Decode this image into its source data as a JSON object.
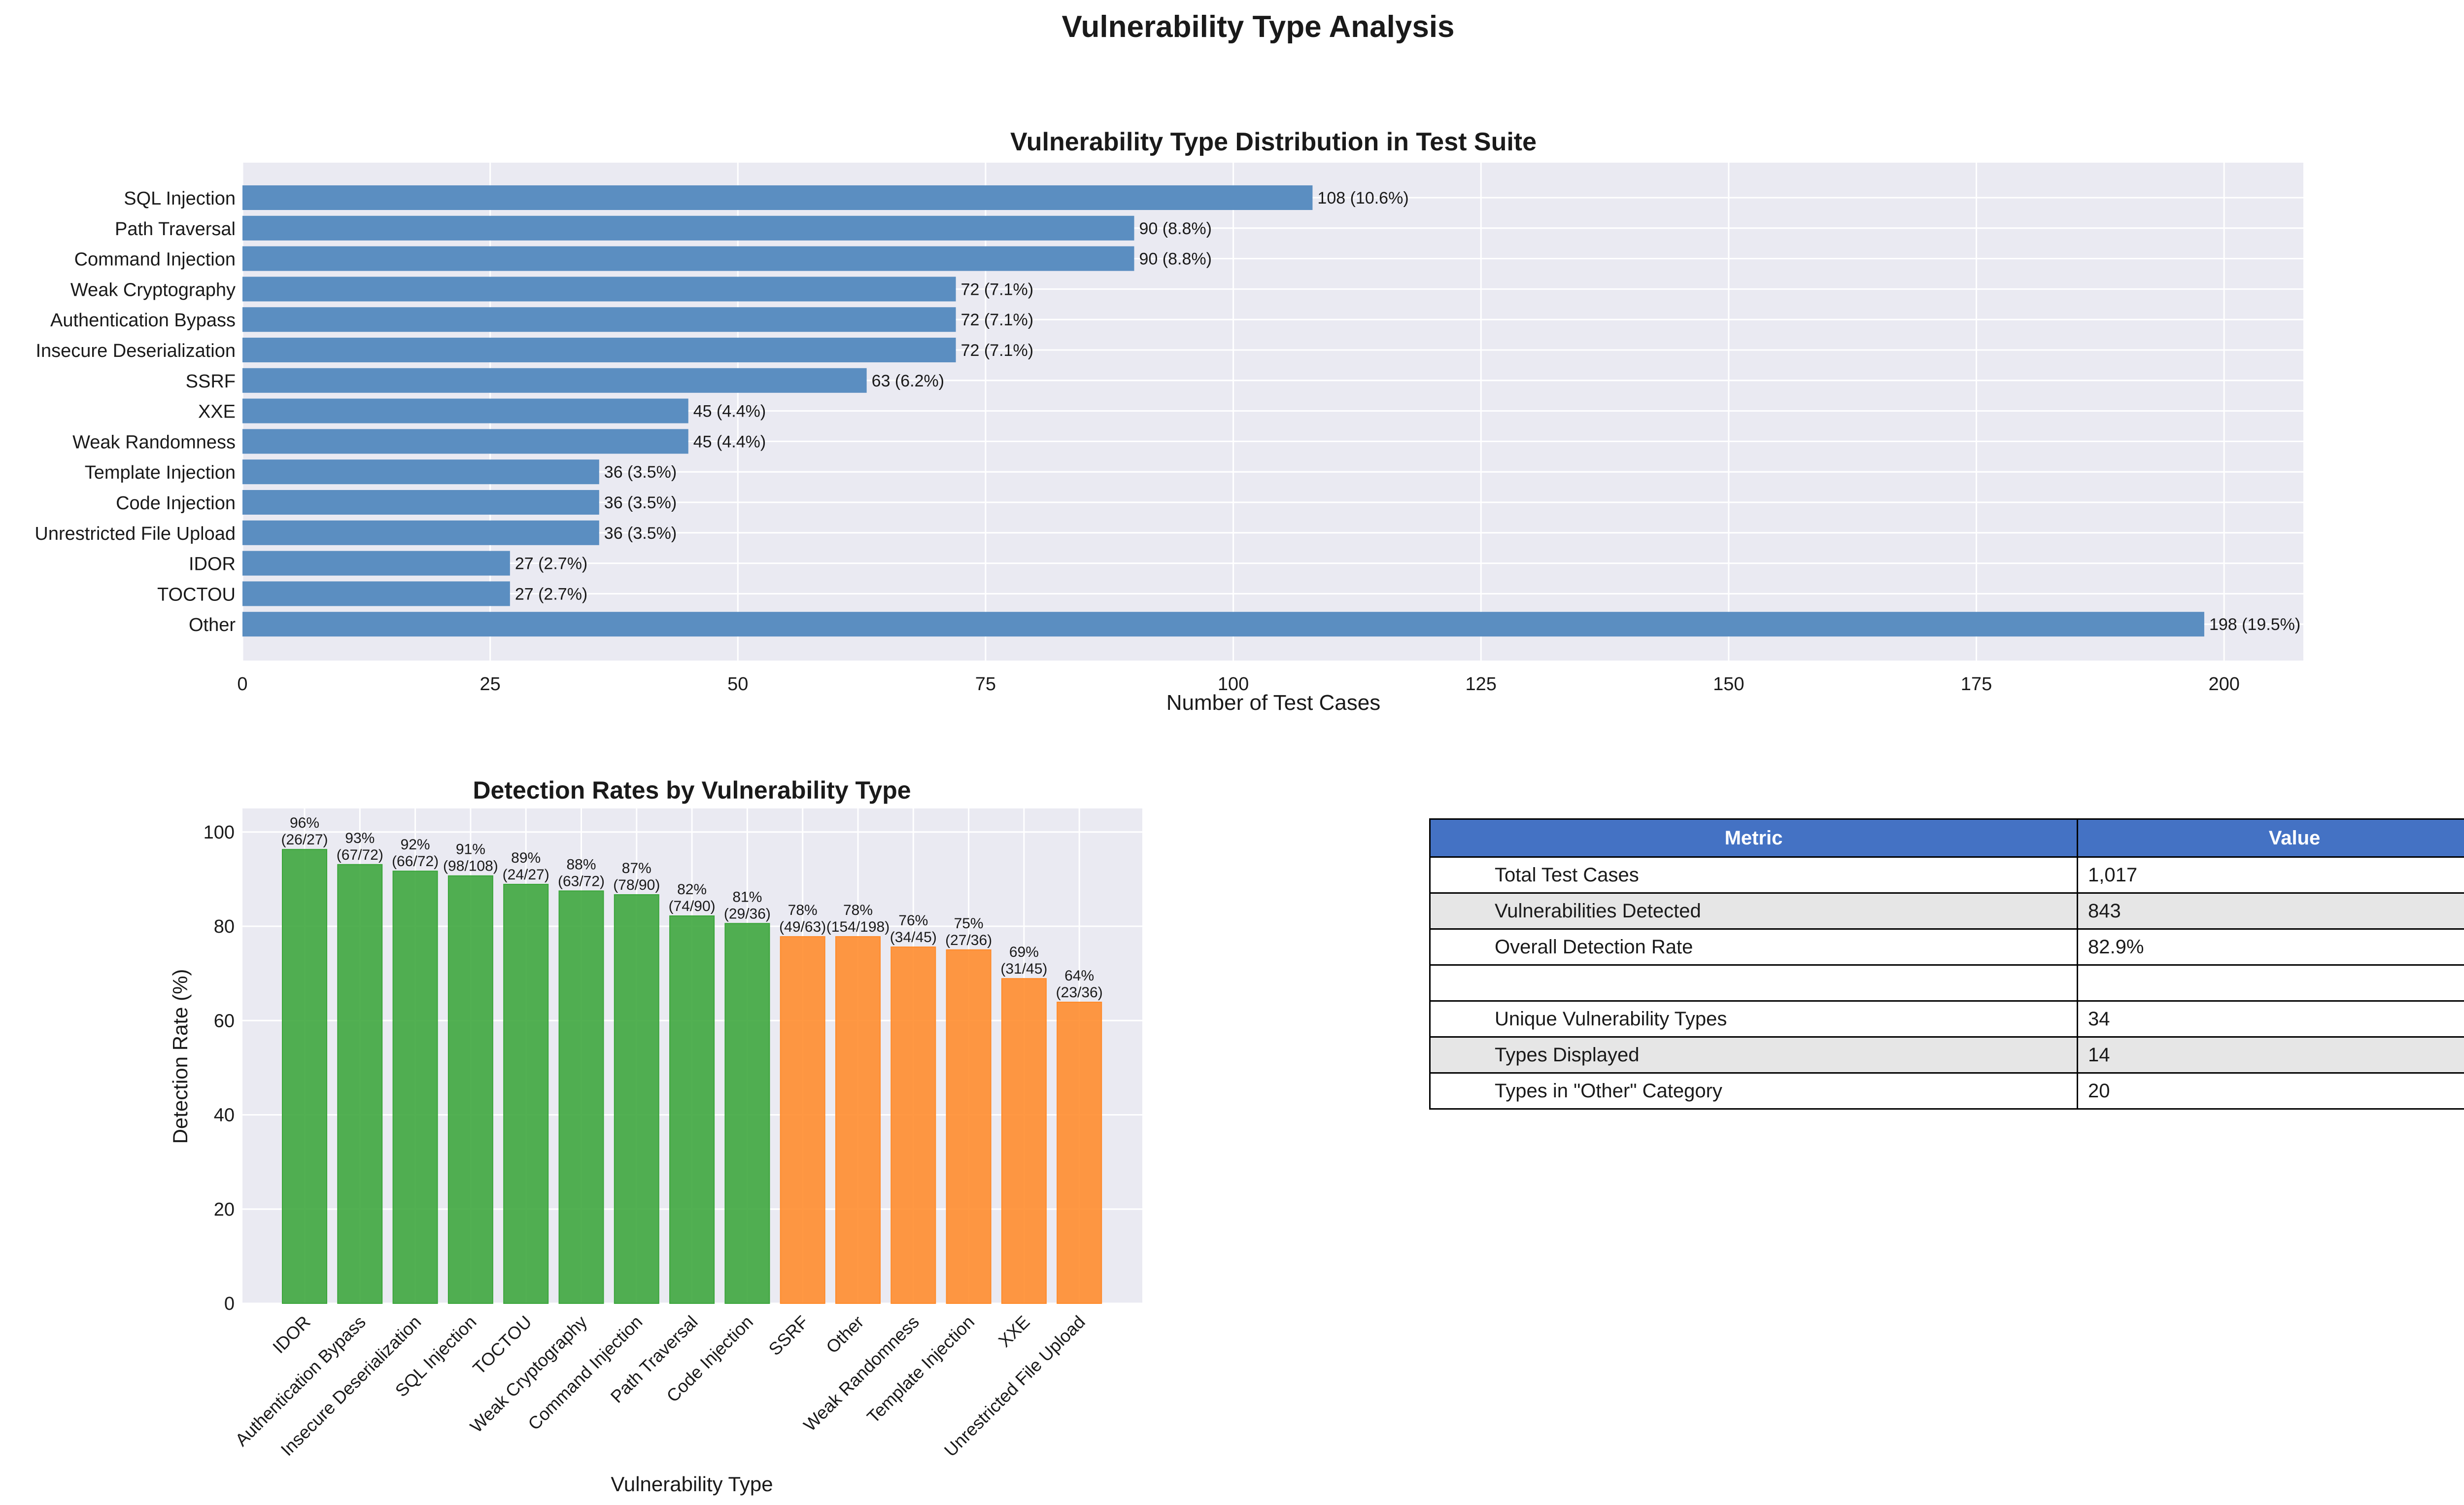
{
  "suptitle": "Vulnerability Type Analysis",
  "colors": {
    "axes_bg": "#eaeaf2",
    "grid": "#ffffff",
    "bar_dist": "#5b8ec1",
    "bar_high": "#3aa53a",
    "bar_low": "#ff8a29",
    "table_header": "#4472c4",
    "table_shade": "#e6e6e6"
  },
  "chart_data": [
    {
      "type": "bar",
      "orientation": "horizontal",
      "title": "Vulnerability Type Distribution in Test Suite",
      "xlabel": "Number of Test Cases",
      "ylabel": "",
      "xlim": [
        0,
        208
      ],
      "xticks": [
        0,
        25,
        50,
        75,
        100,
        125,
        150,
        175,
        200
      ],
      "categories": [
        "SQL Injection",
        "Path Traversal",
        "Command Injection",
        "Weak Cryptography",
        "Authentication Bypass",
        "Insecure Deserialization",
        "SSRF",
        "XXE",
        "Weak Randomness",
        "Template Injection",
        "Code Injection",
        "Unrestricted File Upload",
        "IDOR",
        "TOCTOU",
        "Other"
      ],
      "values": [
        108,
        90,
        90,
        72,
        72,
        72,
        63,
        45,
        45,
        36,
        36,
        36,
        27,
        27,
        198
      ],
      "labels": [
        "108 (10.6%)",
        "90 (8.8%)",
        "90 (8.8%)",
        "72 (7.1%)",
        "72 (7.1%)",
        "72 (7.1%)",
        "63 (6.2%)",
        "45 (4.4%)",
        "45 (4.4%)",
        "36 (3.5%)",
        "36 (3.5%)",
        "36 (3.5%)",
        "27 (2.7%)",
        "27 (2.7%)",
        "198 (19.5%)"
      ]
    },
    {
      "type": "bar",
      "title": "Detection Rates by Vulnerability Type",
      "xlabel": "Vulnerability Type",
      "ylabel": "Detection Rate (%)",
      "ylim": [
        0,
        105
      ],
      "yticks": [
        0,
        20,
        40,
        60,
        80,
        100
      ],
      "categories": [
        "IDOR",
        "Authentication Bypass",
        "Insecure Deserialization",
        "SQL Injection",
        "TOCTOU",
        "Weak Cryptography",
        "Command Injection",
        "Path Traversal",
        "Code Injection",
        "SSRF",
        "Other",
        "Weak Randomness",
        "Template Injection",
        "XXE",
        "Unrestricted File Upload"
      ],
      "values": [
        96.3,
        93.1,
        91.7,
        90.7,
        88.9,
        87.5,
        86.7,
        82.2,
        80.6,
        77.8,
        77.8,
        75.6,
        75.0,
        68.9,
        63.9
      ],
      "pct_labels": [
        "96%",
        "93%",
        "92%",
        "91%",
        "89%",
        "88%",
        "87%",
        "82%",
        "81%",
        "78%",
        "78%",
        "76%",
        "75%",
        "69%",
        "64%"
      ],
      "count_labels": [
        "(26/27)",
        "(67/72)",
        "(66/72)",
        "(98/108)",
        "(24/27)",
        "(63/72)",
        "(78/90)",
        "(74/90)",
        "(29/36)",
        "(49/63)",
        "(154/198)",
        "(34/45)",
        "(27/36)",
        "(31/45)",
        "(23/36)"
      ],
      "color_threshold": 80
    }
  ],
  "table": {
    "headers": [
      "Metric",
      "Value"
    ],
    "rows": [
      [
        "Total Test Cases",
        "1,017"
      ],
      [
        "Vulnerabilities Detected",
        "843"
      ],
      [
        "Overall Detection Rate",
        "82.9%"
      ],
      [
        "",
        ""
      ],
      [
        "Unique Vulnerability Types",
        "34"
      ],
      [
        "Types Displayed",
        "14"
      ],
      [
        "Types in \"Other\" Category",
        "20"
      ]
    ]
  }
}
